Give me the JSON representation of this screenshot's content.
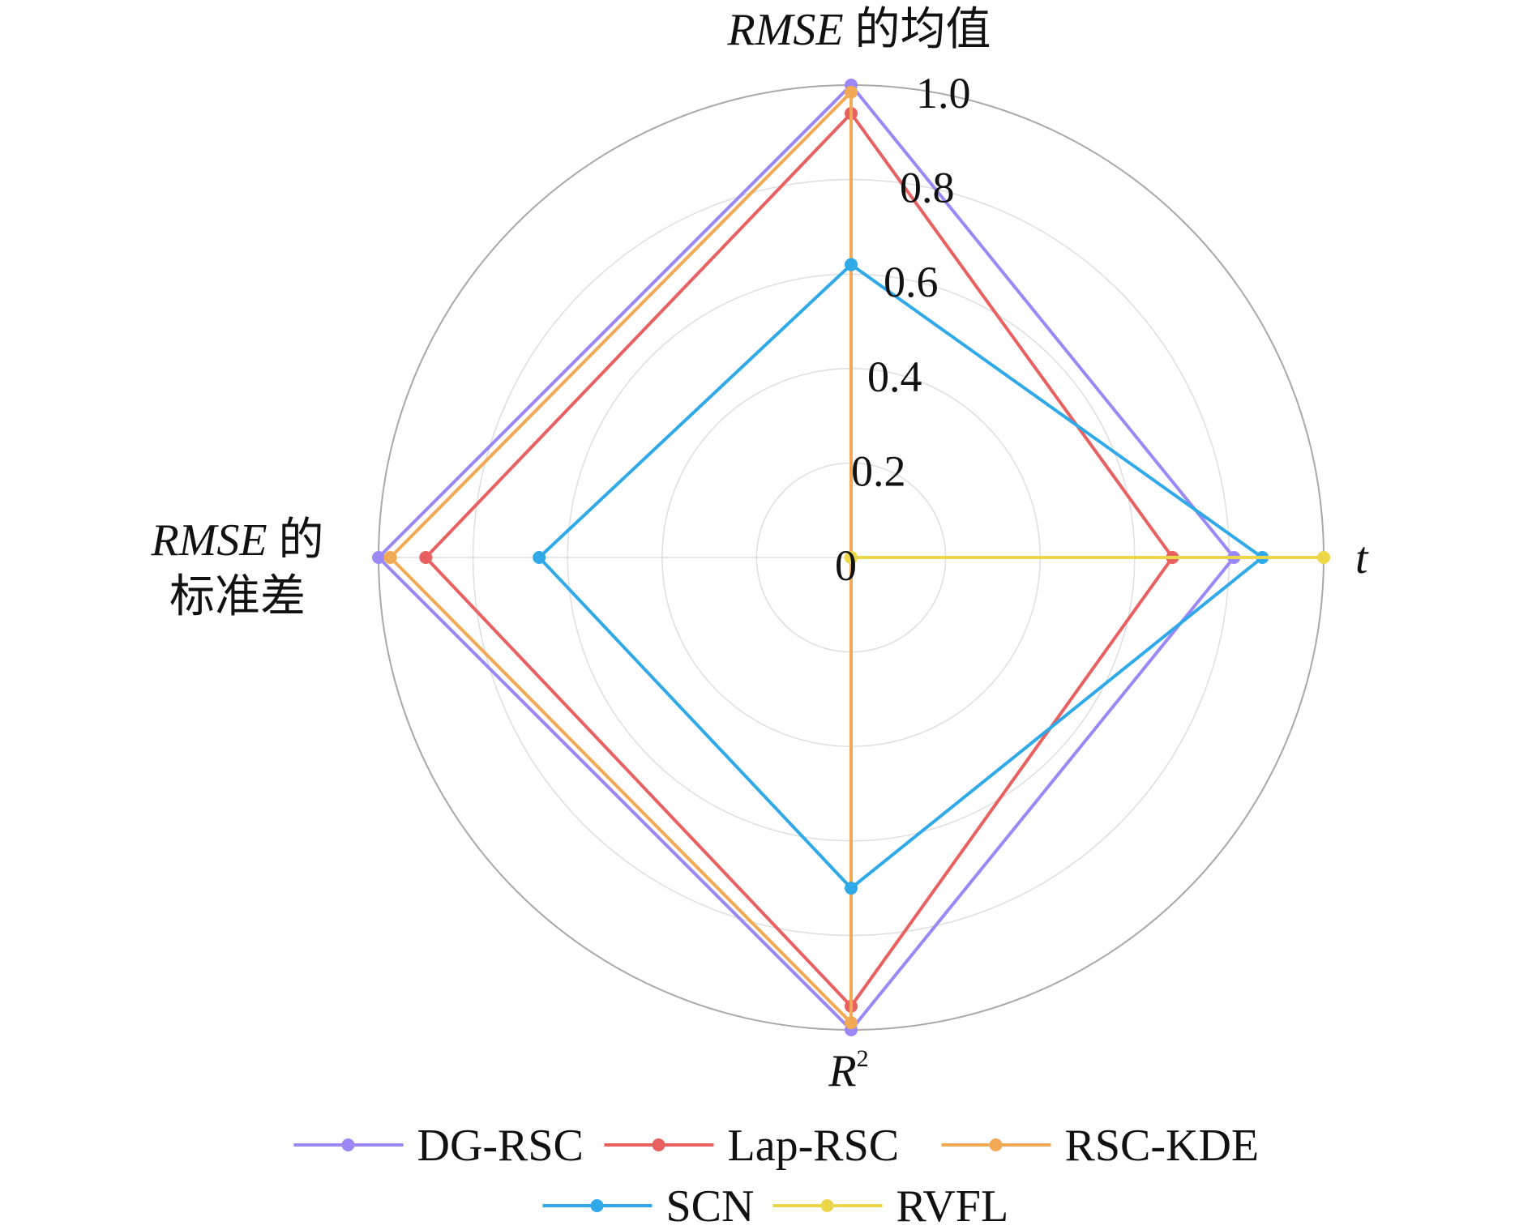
{
  "chart_data": {
    "type": "radar",
    "axes": [
      "RMSE 的均值",
      "t",
      "R²",
      "RMSE 的标准差"
    ],
    "axis_labels": {
      "top": {
        "italic": "RMSE",
        "text": " 的均值"
      },
      "right": {
        "italic": "t"
      },
      "bottom": {
        "italic": "R",
        "sup": "2"
      },
      "left": {
        "italic": "RMSE",
        "text": " 的",
        "line2": "标准差"
      }
    },
    "rlim": [
      0,
      1.0
    ],
    "ticks": [
      "0",
      "0.2",
      "0.4",
      "0.6",
      "0.8",
      "1.0"
    ],
    "tick_values": [
      0,
      0.2,
      0.4,
      0.6,
      0.8,
      1.0
    ],
    "grid": true,
    "legend_position": "bottom",
    "series": [
      {
        "name": "DG-RSC",
        "color": "#9b87f5",
        "values": [
          1.0,
          0.81,
          1.0,
          1.0
        ]
      },
      {
        "name": "Lap-RSC",
        "color": "#e8605f",
        "values": [
          0.94,
          0.68,
          0.95,
          0.9
        ]
      },
      {
        "name": "RSC-KDE",
        "color": "#f2a955",
        "values": [
          0.985,
          0.0,
          0.985,
          0.975
        ]
      },
      {
        "name": "SCN",
        "color": "#2fa9e8",
        "values": [
          0.62,
          0.87,
          0.7,
          0.66
        ]
      },
      {
        "name": "RVFL",
        "color": "#ecd64a",
        "values": [
          0.0,
          1.0,
          0.0,
          0.0
        ]
      }
    ]
  }
}
